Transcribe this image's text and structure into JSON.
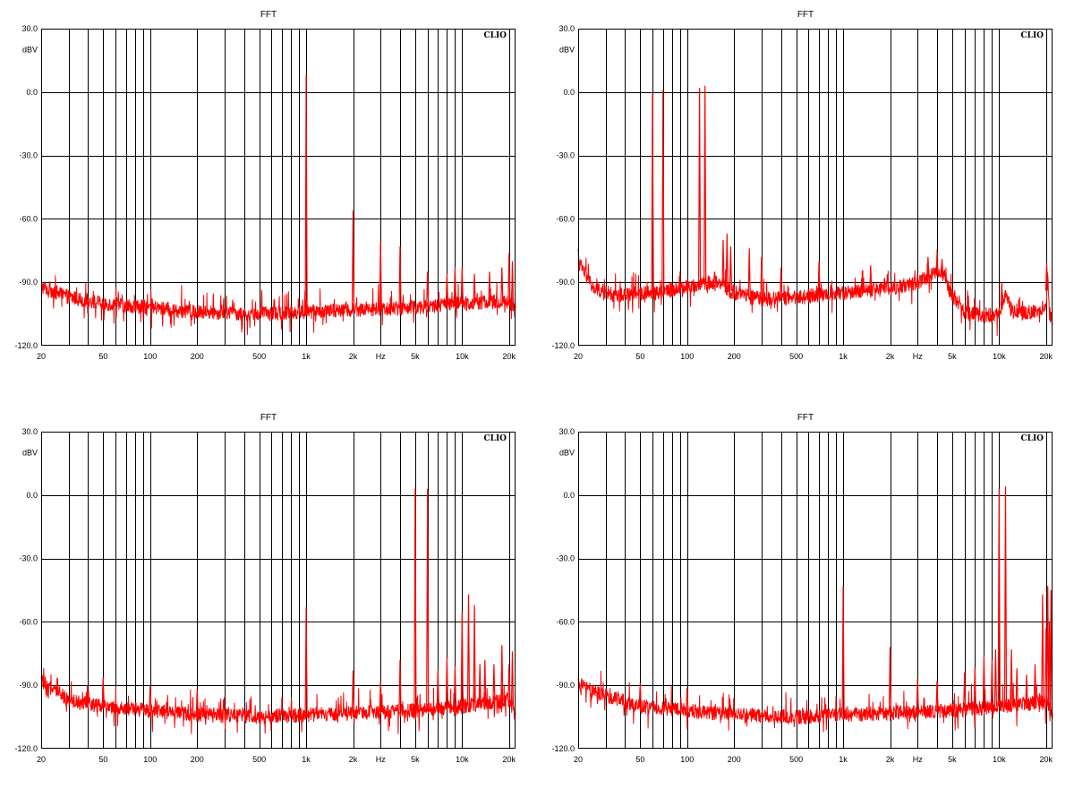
{
  "chart_data": [
    {
      "type": "line",
      "title": "FFT",
      "ylabel": "dBV",
      "xlabel": "Hz",
      "brand": "CLIO",
      "x_scale": "log",
      "xlim": [
        20,
        22000
      ],
      "ylim": [
        -120,
        30
      ],
      "yticks": [
        30,
        0,
        -30,
        -60,
        -90,
        -120
      ],
      "ytick_labels": [
        "30.0",
        "0.0",
        "-30.0",
        "-60.0",
        "-90.0",
        "-120.0"
      ],
      "xtick_values": [
        20,
        50,
        100,
        200,
        500,
        1000,
        2000,
        5000,
        10000,
        20000
      ],
      "xtick_labels": [
        "20",
        "50",
        "100",
        "200",
        "500",
        "1k",
        "2k",
        "5k",
        "10k",
        "20k"
      ],
      "grid": true,
      "series": [
        {
          "color": "#ff0000",
          "noise_floor": [
            [
              20,
              -92
            ],
            [
              30,
              -97
            ],
            [
              50,
              -100
            ],
            [
              100,
              -102
            ],
            [
              200,
              -104
            ],
            [
              500,
              -105
            ],
            [
              1000,
              -104
            ],
            [
              2000,
              -103
            ],
            [
              5000,
              -102
            ],
            [
              10000,
              -100
            ],
            [
              20000,
              -99
            ],
            [
              22000,
              -104
            ]
          ],
          "peaks": [
            [
              1000,
              8
            ],
            [
              2000,
              -56
            ],
            [
              3000,
              -71
            ],
            [
              4000,
              -73
            ],
            [
              6000,
              -85
            ],
            [
              8000,
              -86
            ],
            [
              9000,
              -83
            ],
            [
              10000,
              -83
            ],
            [
              12000,
              -86
            ],
            [
              15000,
              -85
            ],
            [
              18000,
              -83
            ],
            [
              20000,
              -76
            ],
            [
              21000,
              -80
            ]
          ]
        }
      ]
    },
    {
      "type": "line",
      "title": "FFT",
      "ylabel": "dBV",
      "xlabel": "Hz",
      "brand": "CLIO",
      "x_scale": "log",
      "xlim": [
        20,
        22000
      ],
      "ylim": [
        -120,
        30
      ],
      "yticks": [
        30,
        0,
        -30,
        -60,
        -90,
        -120
      ],
      "ytick_labels": [
        "30.0",
        "0.0",
        "-30.0",
        "-60.0",
        "-90.0",
        "-120.0"
      ],
      "xtick_values": [
        20,
        50,
        100,
        200,
        500,
        1000,
        2000,
        5000,
        10000,
        20000
      ],
      "xtick_labels": [
        "20",
        "50",
        "100",
        "200",
        "500",
        "1k",
        "2k",
        "5k",
        "10k",
        "20k"
      ],
      "grid": true,
      "series": [
        {
          "color": "#ff0000",
          "noise_floor": [
            [
              20,
              -80
            ],
            [
              25,
              -93
            ],
            [
              35,
              -96
            ],
            [
              60,
              -95
            ],
            [
              100,
              -92
            ],
            [
              150,
              -90
            ],
            [
              200,
              -95
            ],
            [
              300,
              -98
            ],
            [
              500,
              -97
            ],
            [
              1000,
              -95
            ],
            [
              2000,
              -93
            ],
            [
              3000,
              -90
            ],
            [
              4000,
              -85
            ],
            [
              4500,
              -87
            ],
            [
              5000,
              -96
            ],
            [
              6000,
              -104
            ],
            [
              8000,
              -106
            ],
            [
              10000,
              -105
            ],
            [
              11000,
              -95
            ],
            [
              12000,
              -104
            ],
            [
              16000,
              -104
            ],
            [
              18000,
              -104
            ],
            [
              20000,
              -100
            ],
            [
              20500,
              -85
            ],
            [
              21000,
              -106
            ],
            [
              22000,
              -108
            ]
          ],
          "peaks": [
            [
              60,
              -1
            ],
            [
              70,
              1
            ],
            [
              120,
              2
            ],
            [
              130,
              3
            ],
            [
              150,
              -85
            ],
            [
              170,
              -70
            ],
            [
              180,
              -67
            ],
            [
              190,
              -73
            ],
            [
              250,
              -74
            ],
            [
              300,
              -78
            ],
            [
              400,
              -83
            ],
            [
              700,
              -80
            ],
            [
              1500,
              -82
            ],
            [
              3500,
              -78
            ],
            [
              4000,
              -77
            ],
            [
              4300,
              -79
            ],
            [
              10400,
              -90
            ],
            [
              20200,
              -81
            ]
          ]
        }
      ]
    },
    {
      "type": "line",
      "title": "FFT",
      "ylabel": "dBV",
      "xlabel": "Hz",
      "brand": "CLIO",
      "x_scale": "log",
      "xlim": [
        20,
        22000
      ],
      "ylim": [
        -120,
        30
      ],
      "yticks": [
        30,
        0,
        -30,
        -60,
        -90,
        -120
      ],
      "ytick_labels": [
        "30.0",
        "0.0",
        "-30.0",
        "-60.0",
        "-90.0",
        "-120.0"
      ],
      "xtick_values": [
        20,
        50,
        100,
        200,
        500,
        1000,
        2000,
        5000,
        10000,
        20000
      ],
      "xtick_labels": [
        "20",
        "50",
        "100",
        "200",
        "500",
        "1k",
        "2k",
        "5k",
        "10k",
        "20k"
      ],
      "grid": true,
      "series": [
        {
          "color": "#ff0000",
          "noise_floor": [
            [
              20,
              -88
            ],
            [
              30,
              -97
            ],
            [
              50,
              -100
            ],
            [
              100,
              -102
            ],
            [
              200,
              -104
            ],
            [
              500,
              -105
            ],
            [
              1000,
              -104
            ],
            [
              2000,
              -103
            ],
            [
              5000,
              -102
            ],
            [
              10000,
              -100
            ],
            [
              20000,
              -97
            ],
            [
              22000,
              -103
            ]
          ],
          "peaks": [
            [
              50,
              -86
            ],
            [
              100,
              -90
            ],
            [
              200,
              -92
            ],
            [
              1000,
              -53
            ],
            [
              2000,
              -83
            ],
            [
              3000,
              -88
            ],
            [
              4000,
              -78
            ],
            [
              5000,
              3
            ],
            [
              6000,
              3
            ],
            [
              7000,
              -83
            ],
            [
              8000,
              -77
            ],
            [
              9000,
              -81
            ],
            [
              10000,
              -55
            ],
            [
              11000,
              -47
            ],
            [
              12000,
              -52
            ],
            [
              13000,
              -80
            ],
            [
              14000,
              -78
            ],
            [
              16000,
              -80
            ],
            [
              18000,
              -71
            ],
            [
              20000,
              -80
            ],
            [
              21000,
              -74
            ]
          ]
        }
      ]
    },
    {
      "type": "line",
      "title": "FFT",
      "ylabel": "dBV",
      "xlabel": "Hz",
      "brand": "CLIO",
      "x_scale": "log",
      "xlim": [
        20,
        22000
      ],
      "ylim": [
        -120,
        30
      ],
      "yticks": [
        30,
        0,
        -30,
        -60,
        -90,
        -120
      ],
      "ytick_labels": [
        "30.0",
        "0.0",
        "-30.0",
        "-60.0",
        "-90.0",
        "-120.0"
      ],
      "xtick_values": [
        20,
        50,
        100,
        200,
        500,
        1000,
        2000,
        5000,
        10000,
        20000
      ],
      "xtick_labels": [
        "20",
        "50",
        "100",
        "200",
        "500",
        "1k",
        "2k",
        "5k",
        "10k",
        "20k"
      ],
      "grid": true,
      "series": [
        {
          "color": "#ff0000",
          "noise_floor": [
            [
              20,
              -90
            ],
            [
              30,
              -95
            ],
            [
              50,
              -100
            ],
            [
              100,
              -102
            ],
            [
              200,
              -104
            ],
            [
              500,
              -105
            ],
            [
              1000,
              -104
            ],
            [
              2000,
              -103
            ],
            [
              5000,
              -102
            ],
            [
              10000,
              -100
            ],
            [
              20000,
              -98
            ],
            [
              22000,
              -104
            ]
          ],
          "peaks": [
            [
              50,
              -89
            ],
            [
              100,
              -91
            ],
            [
              1000,
              -43
            ],
            [
              2000,
              -72
            ],
            [
              3000,
              -87
            ],
            [
              4000,
              -88
            ],
            [
              6000,
              -84
            ],
            [
              7000,
              -82
            ],
            [
              8000,
              -76
            ],
            [
              9000,
              -78
            ],
            [
              9500,
              -73
            ],
            [
              10000,
              3
            ],
            [
              11000,
              4
            ],
            [
              12000,
              -73
            ],
            [
              13000,
              -82
            ],
            [
              15000,
              -85
            ],
            [
              17000,
              -80
            ],
            [
              19000,
              -47
            ],
            [
              20000,
              -63
            ],
            [
              20500,
              -43
            ],
            [
              21000,
              -60
            ],
            [
              21500,
              -45
            ]
          ]
        }
      ]
    }
  ]
}
